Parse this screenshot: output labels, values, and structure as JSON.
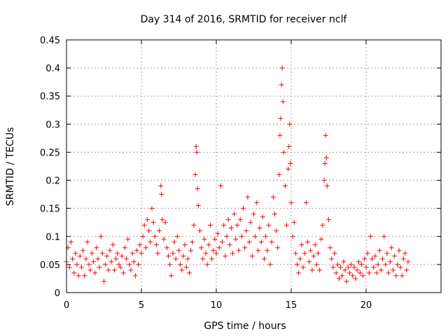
{
  "chart_data": {
    "type": "scatter",
    "title": "Day 314 of 2016, SRMTID for receiver nclf",
    "xlabel": "GPS time / hours",
    "ylabel": "SRMTID / TECUs",
    "xlim": [
      0,
      25
    ],
    "ylim": [
      0,
      0.45
    ],
    "grid": true,
    "marker": "+",
    "series_color": "#ff0000",
    "x_ticks": [
      0,
      5,
      10,
      15,
      20
    ],
    "x_tick_labels": [
      "0",
      "5",
      "10",
      "15",
      "20"
    ],
    "y_ticks": [
      0,
      0.05,
      0.1,
      0.15,
      0.2,
      0.25,
      0.3,
      0.35,
      0.4,
      0.45
    ],
    "y_tick_labels": [
      "0",
      "0.05",
      "0.1",
      "0.15",
      "0.2",
      "0.25",
      "0.3",
      "0.35",
      "0.4",
      "0.45"
    ],
    "series": [
      {
        "name": "SRMTID",
        "points": [
          [
            0.0,
            0.055
          ],
          [
            0.1,
            0.08
          ],
          [
            0.2,
            0.045
          ],
          [
            0.3,
            0.09
          ],
          [
            0.4,
            0.06
          ],
          [
            0.5,
            0.035
          ],
          [
            0.6,
            0.07
          ],
          [
            0.7,
            0.05
          ],
          [
            0.8,
            0.03
          ],
          [
            0.9,
            0.065
          ],
          [
            1.0,
            0.045
          ],
          [
            1.1,
            0.075
          ],
          [
            1.2,
            0.03
          ],
          [
            1.3,
            0.06
          ],
          [
            1.4,
            0.09
          ],
          [
            1.5,
            0.05
          ],
          [
            1.6,
            0.04
          ],
          [
            1.7,
            0.07
          ],
          [
            1.8,
            0.055
          ],
          [
            1.9,
            0.035
          ],
          [
            2.0,
            0.08
          ],
          [
            2.1,
            0.06
          ],
          [
            2.2,
            0.045
          ],
          [
            2.3,
            0.1
          ],
          [
            2.4,
            0.07
          ],
          [
            2.5,
            0.02
          ],
          [
            2.6,
            0.05
          ],
          [
            2.7,
            0.065
          ],
          [
            2.8,
            0.04
          ],
          [
            2.9,
            0.075
          ],
          [
            3.0,
            0.055
          ],
          [
            3.1,
            0.085
          ],
          [
            3.2,
            0.04
          ],
          [
            3.3,
            0.06
          ],
          [
            3.4,
            0.07
          ],
          [
            3.5,
            0.05
          ],
          [
            3.6,
            0.045
          ],
          [
            3.7,
            0.065
          ],
          [
            3.8,
            0.035
          ],
          [
            3.9,
            0.08
          ],
          [
            4.0,
            0.06
          ],
          [
            4.1,
            0.095
          ],
          [
            4.2,
            0.05
          ],
          [
            4.3,
            0.04
          ],
          [
            4.4,
            0.07
          ],
          [
            4.5,
            0.055
          ],
          [
            4.6,
            0.03
          ],
          [
            4.7,
            0.075
          ],
          [
            4.8,
            0.05
          ],
          [
            4.9,
            0.085
          ],
          [
            5.0,
            0.07
          ],
          [
            5.1,
            0.1
          ],
          [
            5.2,
            0.12
          ],
          [
            5.3,
            0.08
          ],
          [
            5.4,
            0.13
          ],
          [
            5.5,
            0.11
          ],
          [
            5.6,
            0.09
          ],
          [
            5.7,
            0.15
          ],
          [
            5.8,
            0.125
          ],
          [
            5.9,
            0.1
          ],
          [
            6.0,
            0.085
          ],
          [
            6.1,
            0.07
          ],
          [
            6.2,
            0.11
          ],
          [
            6.3,
            0.19
          ],
          [
            6.35,
            0.175
          ],
          [
            6.4,
            0.13
          ],
          [
            6.5,
            0.095
          ],
          [
            6.6,
            0.125
          ],
          [
            6.7,
            0.08
          ],
          [
            6.8,
            0.065
          ],
          [
            6.9,
            0.05
          ],
          [
            7.0,
            0.03
          ],
          [
            7.1,
            0.07
          ],
          [
            7.2,
            0.09
          ],
          [
            7.3,
            0.06
          ],
          [
            7.4,
            0.1
          ],
          [
            7.5,
            0.075
          ],
          [
            7.6,
            0.05
          ],
          [
            7.7,
            0.04
          ],
          [
            7.8,
            0.065
          ],
          [
            7.9,
            0.085
          ],
          [
            8.0,
            0.045
          ],
          [
            8.1,
            0.06
          ],
          [
            8.2,
            0.035
          ],
          [
            8.3,
            0.075
          ],
          [
            8.4,
            0.09
          ],
          [
            8.5,
            0.12
          ],
          [
            8.6,
            0.21
          ],
          [
            8.65,
            0.26
          ],
          [
            8.7,
            0.25
          ],
          [
            8.75,
            0.185
          ],
          [
            8.8,
            0.155
          ],
          [
            8.9,
            0.11
          ],
          [
            9.0,
            0.08
          ],
          [
            9.1,
            0.06
          ],
          [
            9.2,
            0.095
          ],
          [
            9.3,
            0.07
          ],
          [
            9.4,
            0.05
          ],
          [
            9.5,
            0.085
          ],
          [
            9.6,
            0.12
          ],
          [
            9.7,
            0.06
          ],
          [
            9.8,
            0.075
          ],
          [
            9.9,
            0.095
          ],
          [
            10.0,
            0.07
          ],
          [
            10.1,
            0.105
          ],
          [
            10.2,
            0.08
          ],
          [
            10.3,
            0.19
          ],
          [
            10.4,
            0.09
          ],
          [
            10.5,
            0.12
          ],
          [
            10.6,
            0.065
          ],
          [
            10.7,
            0.1
          ],
          [
            10.8,
            0.13
          ],
          [
            10.9,
            0.085
          ],
          [
            11.0,
            0.115
          ],
          [
            11.1,
            0.07
          ],
          [
            11.2,
            0.14
          ],
          [
            11.3,
            0.095
          ],
          [
            11.4,
            0.12
          ],
          [
            11.5,
            0.075
          ],
          [
            11.6,
            0.13
          ],
          [
            11.7,
            0.1
          ],
          [
            11.8,
            0.15
          ],
          [
            11.9,
            0.08
          ],
          [
            12.0,
            0.11
          ],
          [
            12.1,
            0.17
          ],
          [
            12.2,
            0.09
          ],
          [
            12.3,
            0.125
          ],
          [
            12.4,
            0.065
          ],
          [
            12.5,
            0.14
          ],
          [
            12.6,
            0.1
          ],
          [
            12.7,
            0.16
          ],
          [
            12.8,
            0.075
          ],
          [
            12.9,
            0.115
          ],
          [
            13.0,
            0.09
          ],
          [
            13.1,
            0.135
          ],
          [
            13.2,
            0.06
          ],
          [
            13.3,
            0.1
          ],
          [
            13.4,
            0.075
          ],
          [
            13.5,
            0.12
          ],
          [
            13.6,
            0.05
          ],
          [
            13.7,
            0.09
          ],
          [
            13.8,
            0.17
          ],
          [
            13.9,
            0.14
          ],
          [
            14.0,
            0.11
          ],
          [
            14.1,
            0.08
          ],
          [
            14.2,
            0.21
          ],
          [
            14.25,
            0.28
          ],
          [
            14.3,
            0.31
          ],
          [
            14.35,
            0.37
          ],
          [
            14.4,
            0.4
          ],
          [
            14.45,
            0.34
          ],
          [
            14.5,
            0.25
          ],
          [
            14.6,
            0.19
          ],
          [
            14.7,
            0.12
          ],
          [
            14.8,
            0.22
          ],
          [
            14.85,
            0.26
          ],
          [
            14.9,
            0.3
          ],
          [
            14.95,
            0.23
          ],
          [
            15.0,
            0.16
          ],
          [
            15.1,
            0.1
          ],
          [
            15.2,
            0.125
          ],
          [
            15.3,
            0.07
          ],
          [
            15.4,
            0.05
          ],
          [
            15.5,
            0.035
          ],
          [
            15.6,
            0.06
          ],
          [
            15.7,
            0.085
          ],
          [
            15.8,
            0.045
          ],
          [
            15.9,
            0.07
          ],
          [
            16.0,
            0.16
          ],
          [
            16.1,
            0.09
          ],
          [
            16.2,
            0.055
          ],
          [
            16.3,
            0.075
          ],
          [
            16.4,
            0.04
          ],
          [
            16.5,
            0.065
          ],
          [
            16.6,
            0.085
          ],
          [
            16.7,
            0.05
          ],
          [
            16.8,
            0.07
          ],
          [
            16.9,
            0.04
          ],
          [
            17.0,
            0.095
          ],
          [
            17.1,
            0.12
          ],
          [
            17.2,
            0.2
          ],
          [
            17.25,
            0.23
          ],
          [
            17.3,
            0.28
          ],
          [
            17.35,
            0.24
          ],
          [
            17.4,
            0.19
          ],
          [
            17.5,
            0.13
          ],
          [
            17.6,
            0.08
          ],
          [
            17.7,
            0.06
          ],
          [
            17.8,
            0.045
          ],
          [
            17.9,
            0.07
          ],
          [
            18.0,
            0.035
          ],
          [
            18.1,
            0.05
          ],
          [
            18.2,
            0.025
          ],
          [
            18.3,
            0.045
          ],
          [
            18.4,
            0.03
          ],
          [
            18.5,
            0.055
          ],
          [
            18.6,
            0.04
          ],
          [
            18.7,
            0.02
          ],
          [
            18.8,
            0.045
          ],
          [
            18.9,
            0.035
          ],
          [
            19.0,
            0.05
          ],
          [
            19.1,
            0.03
          ],
          [
            19.2,
            0.045
          ],
          [
            19.3,
            0.025
          ],
          [
            19.4,
            0.04
          ],
          [
            19.5,
            0.055
          ],
          [
            19.6,
            0.035
          ],
          [
            19.7,
            0.05
          ],
          [
            19.8,
            0.03
          ],
          [
            19.9,
            0.06
          ],
          [
            20.0,
            0.045
          ],
          [
            20.1,
            0.07
          ],
          [
            20.2,
            0.035
          ],
          [
            20.3,
            0.1
          ],
          [
            20.4,
            0.06
          ],
          [
            20.5,
            0.045
          ],
          [
            20.6,
            0.065
          ],
          [
            20.7,
            0.035
          ],
          [
            20.8,
            0.05
          ],
          [
            20.9,
            0.075
          ],
          [
            21.0,
            0.04
          ],
          [
            21.1,
            0.06
          ],
          [
            21.2,
            0.1
          ],
          [
            21.3,
            0.05
          ],
          [
            21.4,
            0.07
          ],
          [
            21.5,
            0.035
          ],
          [
            21.6,
            0.055
          ],
          [
            21.7,
            0.08
          ],
          [
            21.8,
            0.04
          ],
          [
            21.9,
            0.065
          ],
          [
            22.0,
            0.03
          ],
          [
            22.1,
            0.05
          ],
          [
            22.2,
            0.075
          ],
          [
            22.3,
            0.045
          ],
          [
            22.4,
            0.03
          ],
          [
            22.5,
            0.06
          ],
          [
            22.6,
            0.07
          ],
          [
            22.7,
            0.04
          ],
          [
            22.8,
            0.055
          ]
        ]
      }
    ]
  }
}
